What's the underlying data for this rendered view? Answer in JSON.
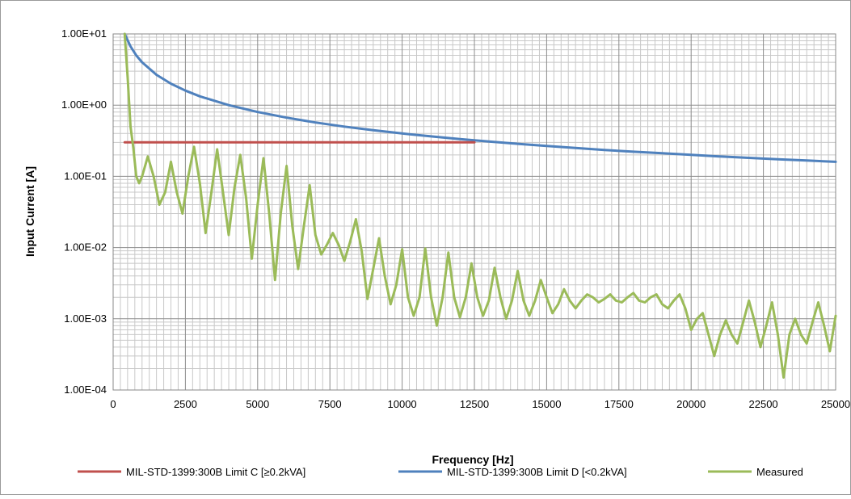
{
  "chart_data": {
    "type": "line",
    "title": "",
    "xlabel": "Frequency [Hz]",
    "ylabel": "Input Current [A]",
    "xlim": [
      0,
      25000
    ],
    "ylim": [
      0.0001,
      10
    ],
    "yscale": "log",
    "grid": true,
    "legend_position": "bottom",
    "x_ticks": [
      "0",
      "2500",
      "5000",
      "7500",
      "10000",
      "12500",
      "15000",
      "17500",
      "20000",
      "22500",
      "25000"
    ],
    "y_ticks": [
      "1.00E-04",
      "1.00E-03",
      "1.00E-02",
      "1.00E-01",
      "1.00E+00",
      "1.00E+01"
    ],
    "series": [
      {
        "name": "MIL-STD-1399:300B Limit C [≥0.2kVA]",
        "color": "#c0504d",
        "x": [
          400,
          12500
        ],
        "y": [
          0.3,
          0.3
        ]
      },
      {
        "name": "MIL-STD-1399:300B Limit D [<0.2kVA]",
        "color": "#4f81bd",
        "x": [
          400,
          600,
          800,
          1000,
          1500,
          2000,
          2500,
          3000,
          4000,
          5000,
          6000,
          7000,
          8000,
          9000,
          10000,
          11000,
          12000,
          12500,
          13000,
          14000,
          15000,
          16000,
          17000,
          18000,
          19000,
          20000,
          21000,
          22000,
          23000,
          24000,
          25000
        ],
        "y": [
          10,
          6.67,
          5.0,
          4.0,
          2.67,
          2.0,
          1.6,
          1.33,
          1.0,
          0.8,
          0.667,
          0.571,
          0.5,
          0.444,
          0.4,
          0.364,
          0.333,
          0.32,
          0.308,
          0.286,
          0.267,
          0.25,
          0.235,
          0.222,
          0.211,
          0.2,
          0.19,
          0.182,
          0.174,
          0.167,
          0.16
        ]
      },
      {
        "name": "Measured",
        "color": "#9bbb59",
        "x": [
          400,
          500,
          600,
          700,
          800,
          900,
          1000,
          1200,
          1400,
          1600,
          1800,
          2000,
          2200,
          2400,
          2600,
          2800,
          3000,
          3200,
          3400,
          3600,
          3800,
          4000,
          4200,
          4400,
          4600,
          4800,
          5000,
          5200,
          5400,
          5600,
          5800,
          6000,
          6200,
          6400,
          6600,
          6800,
          7000,
          7200,
          7400,
          7600,
          7800,
          8000,
          8200,
          8400,
          8600,
          8800,
          9000,
          9200,
          9400,
          9600,
          9800,
          10000,
          10200,
          10400,
          10600,
          10800,
          11000,
          11200,
          11400,
          11600,
          11800,
          12000,
          12200,
          12400,
          12600,
          12800,
          13000,
          13200,
          13400,
          13600,
          13800,
          14000,
          14200,
          14400,
          14600,
          14800,
          15000,
          15200,
          15400,
          15600,
          15800,
          16000,
          16200,
          16400,
          16600,
          16800,
          17000,
          17200,
          17400,
          17600,
          17800,
          18000,
          18200,
          18400,
          18600,
          18800,
          19000,
          19200,
          19400,
          19600,
          19800,
          20000,
          20200,
          20400,
          20600,
          20800,
          21000,
          21200,
          21400,
          21600,
          21800,
          22000,
          22200,
          22400,
          22600,
          22800,
          23000,
          23200,
          23400,
          23600,
          23800,
          24000,
          24200,
          24400,
          24600,
          24800,
          25000
        ],
        "y": [
          10,
          2.5,
          0.5,
          0.25,
          0.1,
          0.08,
          0.1,
          0.19,
          0.1,
          0.04,
          0.06,
          0.16,
          0.06,
          0.03,
          0.1,
          0.26,
          0.08,
          0.016,
          0.06,
          0.24,
          0.06,
          0.015,
          0.07,
          0.2,
          0.05,
          0.007,
          0.04,
          0.18,
          0.03,
          0.0035,
          0.03,
          0.14,
          0.02,
          0.005,
          0.02,
          0.075,
          0.015,
          0.008,
          0.011,
          0.016,
          0.011,
          0.0065,
          0.012,
          0.025,
          0.009,
          0.0019,
          0.005,
          0.0135,
          0.004,
          0.0016,
          0.003,
          0.0095,
          0.002,
          0.0011,
          0.002,
          0.0097,
          0.002,
          0.0008,
          0.002,
          0.0085,
          0.002,
          0.00105,
          0.002,
          0.006,
          0.002,
          0.0011,
          0.0018,
          0.0052,
          0.002,
          0.001,
          0.0018,
          0.0047,
          0.0018,
          0.0011,
          0.0018,
          0.0035,
          0.002,
          0.0012,
          0.0016,
          0.0026,
          0.0018,
          0.0014,
          0.0018,
          0.0022,
          0.002,
          0.0017,
          0.0019,
          0.0022,
          0.0018,
          0.0017,
          0.002,
          0.0023,
          0.0018,
          0.0017,
          0.002,
          0.0022,
          0.0016,
          0.0014,
          0.0018,
          0.0022,
          0.0014,
          0.0007,
          0.001,
          0.0012,
          0.0006,
          0.0003,
          0.0006,
          0.00095,
          0.0006,
          0.00045,
          0.0009,
          0.0018,
          0.0009,
          0.0004,
          0.0008,
          0.0017,
          0.0006,
          0.00015,
          0.0006,
          0.001,
          0.0006,
          0.00045,
          0.0009,
          0.0017,
          0.0008,
          0.00035,
          0.0011
        ]
      }
    ]
  }
}
